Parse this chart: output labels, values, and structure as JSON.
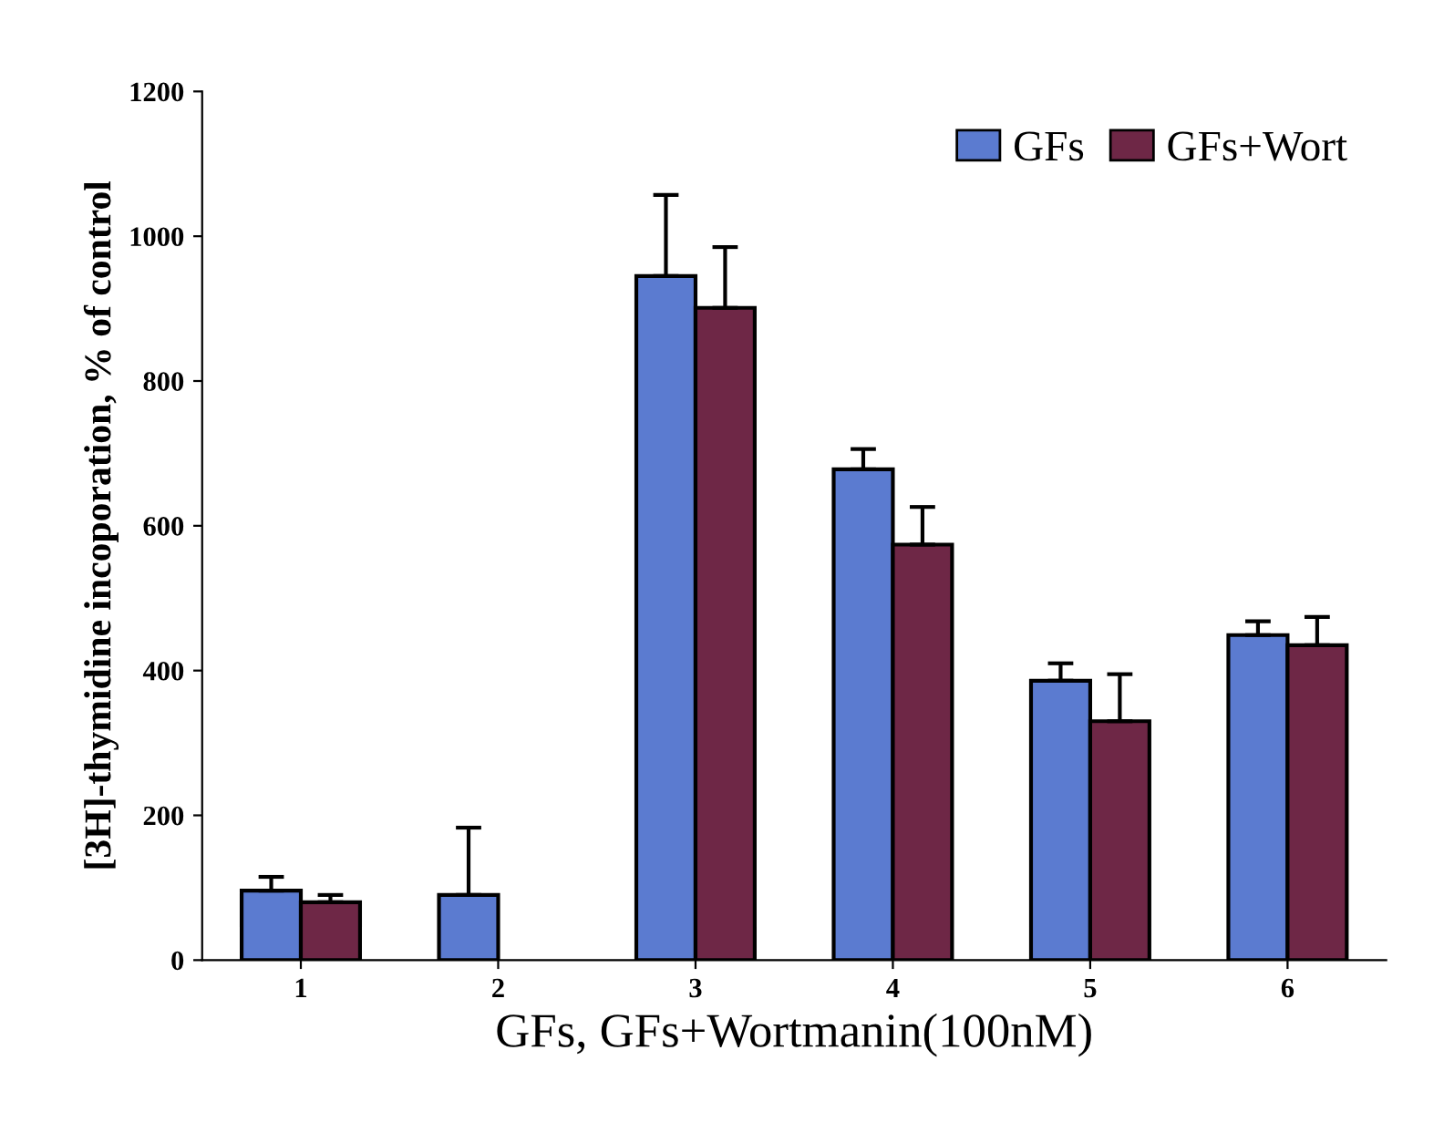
{
  "chart_data": {
    "type": "bar",
    "xlabel": "GFs, GFs+Wortmanin(100nM)",
    "ylabel": "[3H]-thymidine incoporation, % of control",
    "categories": [
      "1",
      "2",
      "3",
      "4",
      "5",
      "6"
    ],
    "series": [
      {
        "name": "GFs",
        "color": "#5b7bd0",
        "values": [
          96,
          90,
          945,
          678,
          386,
          449
        ],
        "errors": [
          [
            96,
            115
          ],
          [
            90,
            183
          ],
          [
            945,
            1057
          ],
          [
            678,
            706
          ],
          [
            386,
            410
          ],
          [
            449,
            468
          ]
        ]
      },
      {
        "name": "GFs+Wort",
        "color": "#6e2746",
        "values": [
          80,
          null,
          901,
          574,
          330,
          435
        ],
        "errors": [
          [
            80,
            90
          ],
          null,
          [
            901,
            985
          ],
          [
            574,
            626
          ],
          [
            330,
            395
          ],
          [
            435,
            474
          ]
        ]
      }
    ],
    "ylim": [
      0,
      1200
    ],
    "yticks": [
      0,
      200,
      400,
      600,
      800,
      1000,
      1200
    ],
    "grid": false,
    "legend": "top right"
  }
}
